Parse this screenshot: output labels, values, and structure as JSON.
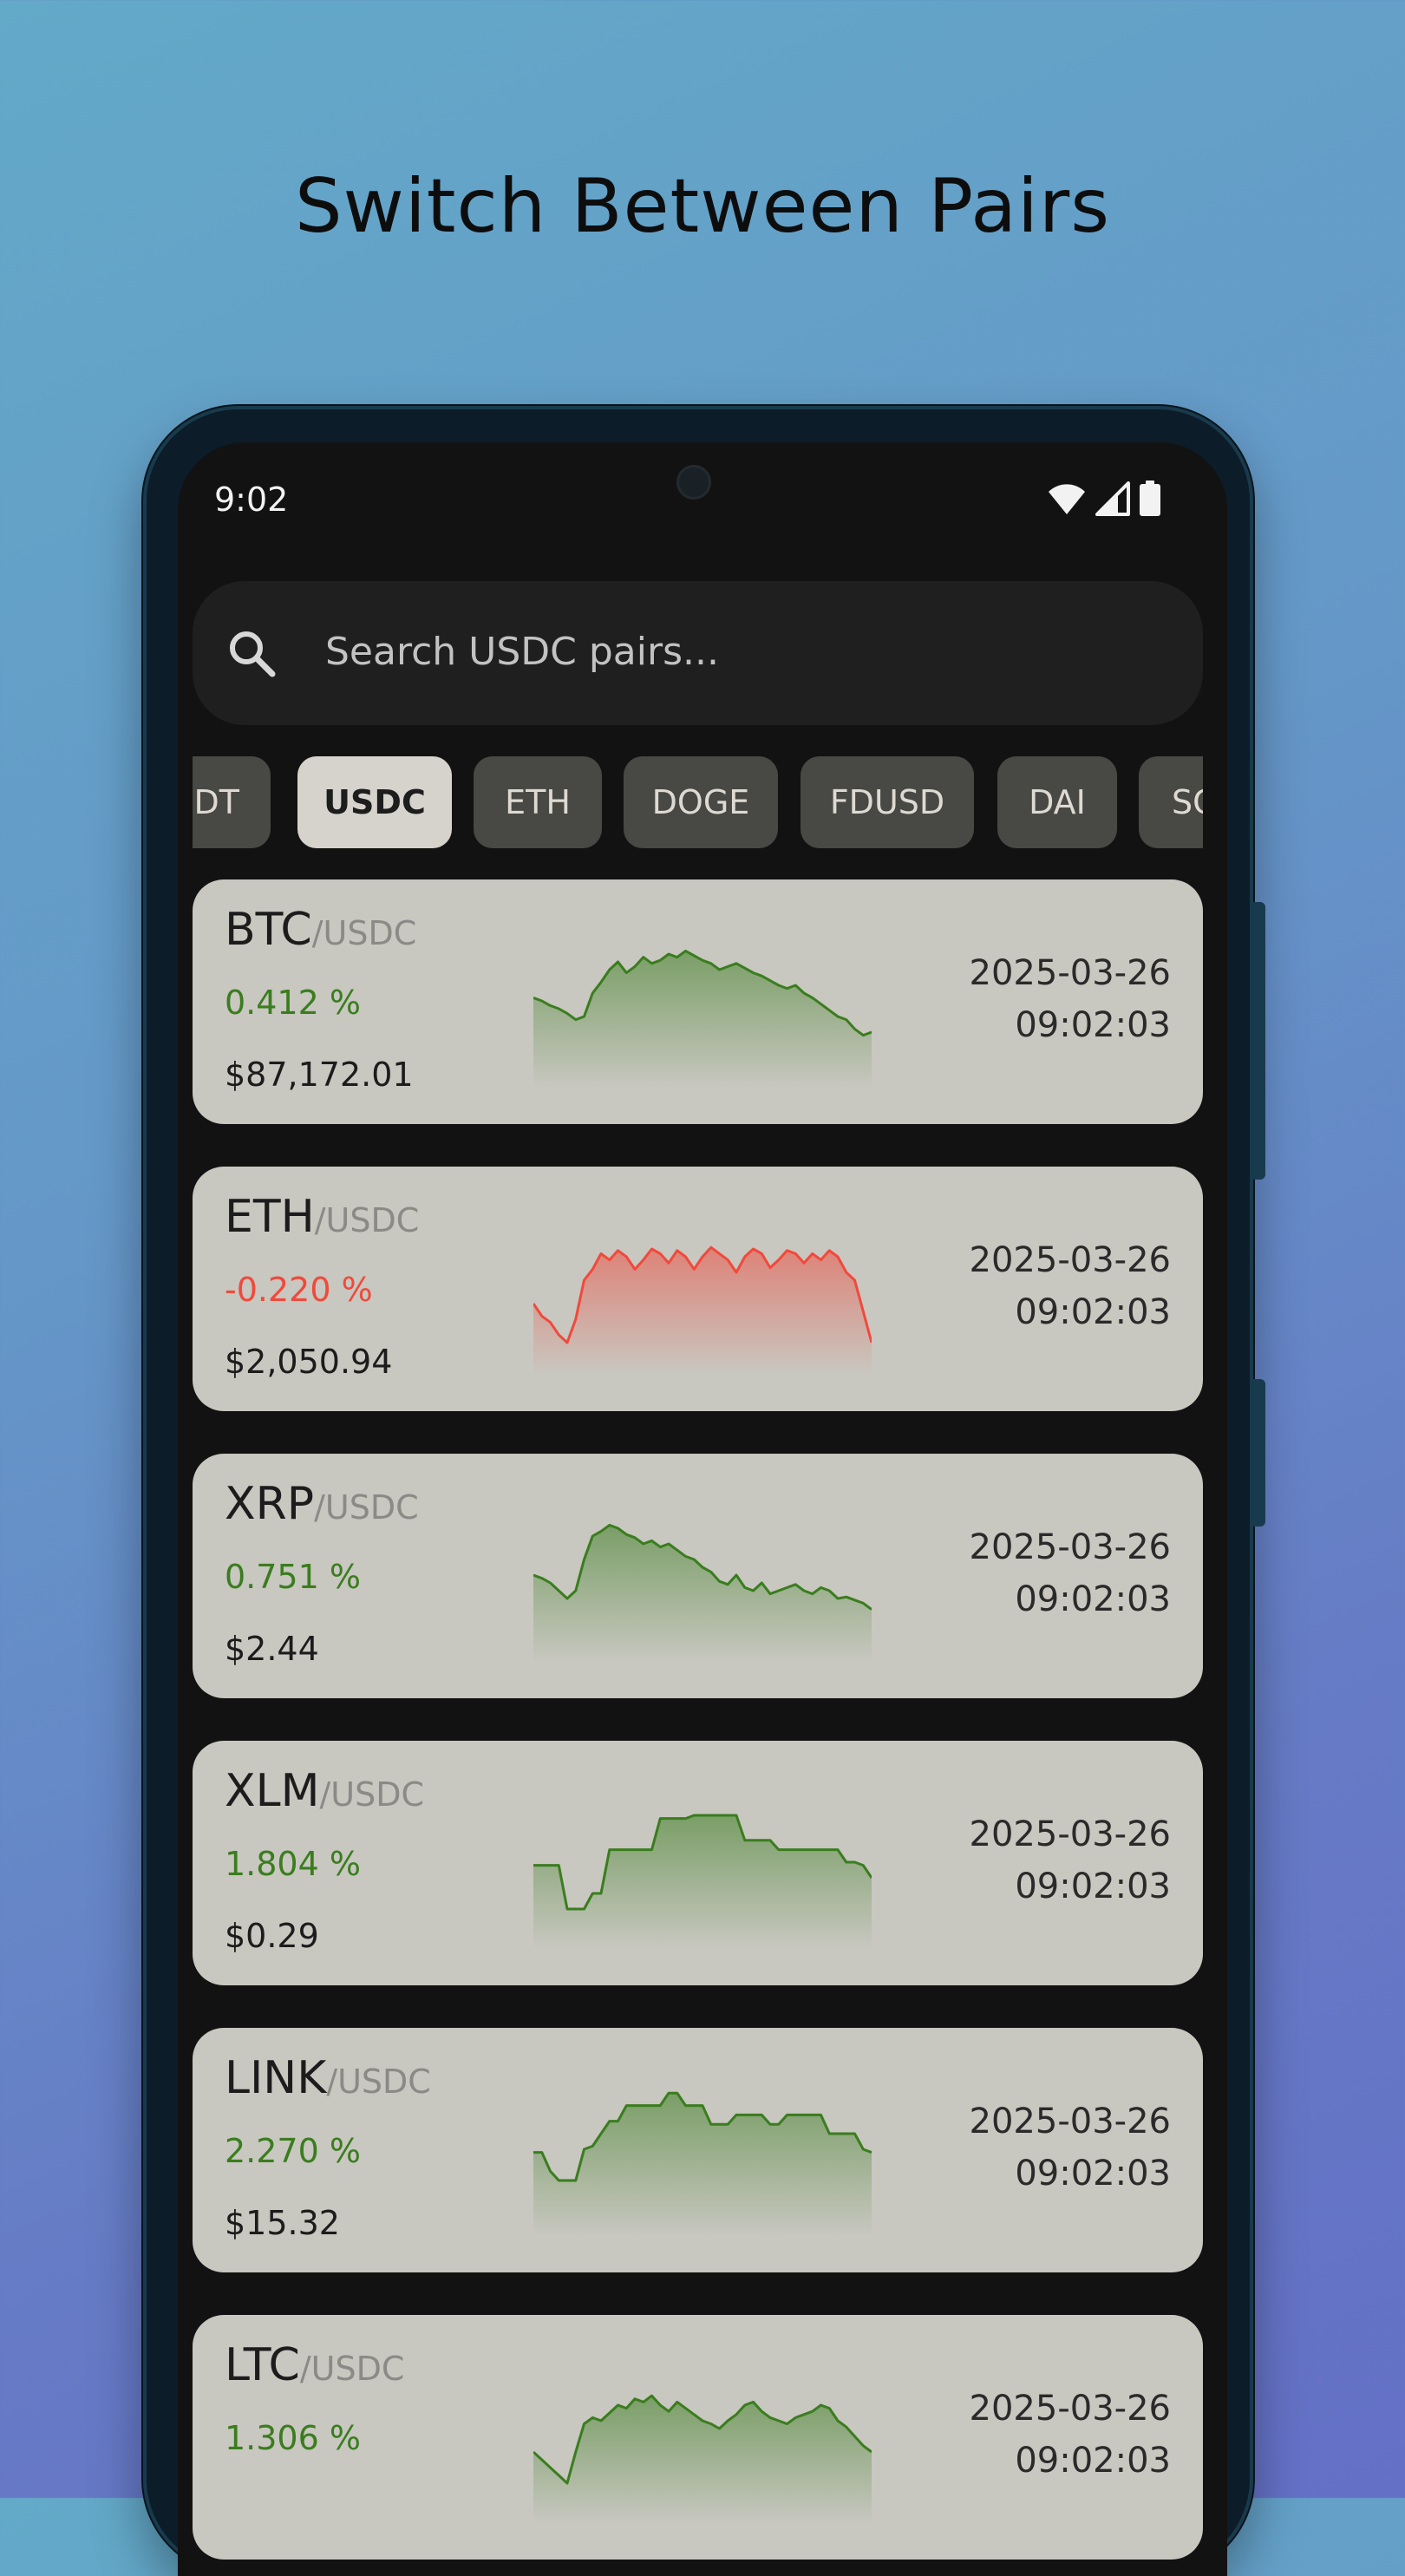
{
  "headline": "Switch Between Pairs",
  "status": {
    "time": "9:02"
  },
  "search": {
    "placeholder": "Search USDC pairs..."
  },
  "chips": [
    {
      "label": "SDT",
      "active": false
    },
    {
      "label": "USDC",
      "active": true
    },
    {
      "label": "ETH",
      "active": false
    },
    {
      "label": "DOGE",
      "active": false
    },
    {
      "label": "FDUSD",
      "active": false
    },
    {
      "label": "DAI",
      "active": false
    },
    {
      "label": "SC",
      "active": false
    }
  ],
  "colors": {
    "up": "#3a7d1e",
    "down": "#f04a3c",
    "card": "#c8c7c0",
    "chip": "#484844",
    "chip_active": "#d5d3cc"
  },
  "cards": [
    {
      "base": "BTC",
      "quote": "/USDC",
      "change": "0.412 %",
      "trend": "up",
      "price": "$87,172.01",
      "date": "2025-03-26",
      "time": "09:02:03",
      "spark": [
        52,
        50,
        47,
        45,
        42,
        38,
        40,
        55,
        62,
        70,
        75,
        68,
        72,
        78,
        74,
        76,
        80,
        78,
        82,
        79,
        76,
        74,
        70,
        72,
        74,
        71,
        68,
        66,
        63,
        60,
        58,
        60,
        55,
        52,
        48,
        44,
        40,
        38,
        32,
        28,
        30
      ]
    },
    {
      "base": "ETH",
      "quote": "/USDC",
      "change": "-0.220 %",
      "trend": "down",
      "price": "$2,050.94",
      "date": "2025-03-26",
      "time": "09:02:03",
      "spark": [
        40,
        32,
        28,
        20,
        15,
        30,
        55,
        62,
        72,
        68,
        74,
        70,
        62,
        68,
        75,
        72,
        66,
        74,
        70,
        62,
        70,
        76,
        72,
        68,
        60,
        70,
        75,
        72,
        63,
        68,
        74,
        72,
        66,
        72,
        68,
        74,
        70,
        60,
        55,
        35,
        15
      ]
    },
    {
      "base": "XRP",
      "quote": "/USDC",
      "change": "0.751 %",
      "trend": "up",
      "price": "$2.44",
      "date": "2025-03-26",
      "time": "09:02:03",
      "spark": [
        50,
        48,
        45,
        40,
        35,
        40,
        60,
        75,
        78,
        82,
        80,
        76,
        74,
        70,
        72,
        68,
        70,
        66,
        62,
        60,
        55,
        52,
        46,
        44,
        50,
        42,
        40,
        45,
        38,
        40,
        42,
        44,
        40,
        38,
        42,
        40,
        35,
        36,
        34,
        32,
        28
      ]
    },
    {
      "base": "XLM",
      "quote": "/USDC",
      "change": "1.804 %",
      "trend": "up",
      "price": "$0.29",
      "date": "2025-03-26",
      "time": "09:02:03",
      "spark": [
        48,
        48,
        48,
        48,
        20,
        20,
        20,
        30,
        30,
        58,
        58,
        58,
        58,
        58,
        58,
        78,
        78,
        78,
        78,
        80,
        80,
        80,
        80,
        80,
        80,
        64,
        64,
        64,
        64,
        58,
        58,
        58,
        58,
        58,
        58,
        58,
        58,
        50,
        50,
        48,
        40
      ]
    },
    {
      "base": "LINK",
      "quote": "/USDC",
      "change": "2.270 %",
      "trend": "up",
      "price": "$15.32",
      "date": "2025-03-26",
      "time": "09:02:03",
      "spark": [
        48,
        48,
        36,
        30,
        30,
        30,
        50,
        52,
        60,
        68,
        68,
        78,
        78,
        78,
        78,
        78,
        86,
        86,
        78,
        78,
        78,
        66,
        66,
        66,
        72,
        72,
        72,
        72,
        66,
        66,
        72,
        72,
        72,
        72,
        72,
        60,
        60,
        60,
        60,
        50,
        48
      ]
    },
    {
      "base": "LTC",
      "quote": "/USDC",
      "change": "1.306 %",
      "trend": "up",
      "price": "",
      "date": "2025-03-26",
      "time": "09:02:03",
      "spark": [
        40,
        35,
        30,
        25,
        20,
        40,
        58,
        62,
        60,
        65,
        70,
        68,
        74,
        72,
        76,
        70,
        66,
        72,
        68,
        64,
        60,
        58,
        55,
        60,
        64,
        70,
        72,
        66,
        62,
        60,
        58,
        62,
        64,
        66,
        70,
        68,
        60,
        56,
        50,
        44,
        40
      ]
    }
  ]
}
